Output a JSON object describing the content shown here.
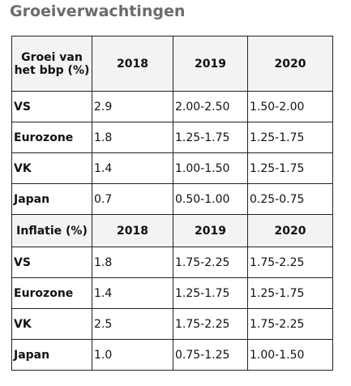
{
  "title": "Groeiverwachtingen",
  "table": {
    "sections": [
      {
        "header": [
          "Groei van het bbp (%)",
          "2018",
          "2019",
          "2020"
        ],
        "rows": [
          [
            "VS",
            "2.9",
            "2.00-2.50",
            "1.50-2.00"
          ],
          [
            "Eurozone",
            "1.8",
            "1.25-1.75",
            "1.25-1.75"
          ],
          [
            "VK",
            "1.4",
            "1.00-1.50",
            "1.25-1.75"
          ],
          [
            "Japan",
            "0.7",
            "0.50-1.00",
            "0.25-0.75"
          ]
        ]
      },
      {
        "header": [
          "Inflatie (%)",
          "2018",
          "2019",
          "2020"
        ],
        "rows": [
          [
            "VS",
            "1.8",
            "1.75-2.25",
            "1.75-2.25"
          ],
          [
            "Eurozone",
            "1.4",
            "1.25-1.75",
            "1.25-1.75"
          ],
          [
            "VK",
            "2.5",
            "1.75-2.25",
            "1.75-2.25"
          ],
          [
            "Japan",
            "1.0",
            "0.75-1.25",
            "1.00-1.50"
          ]
        ]
      }
    ]
  }
}
